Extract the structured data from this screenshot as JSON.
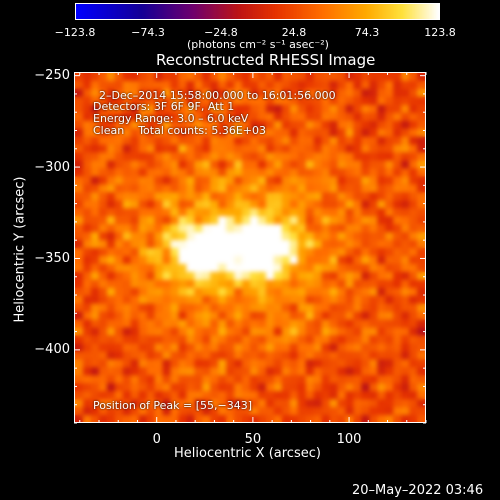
{
  "chart_data": {
    "type": "heatmap",
    "title": "Reconstructed RHESSI Image",
    "xlabel": "Heliocentric X (arcsec)",
    "ylabel": "Heliocentric Y (arcsec)",
    "xlim": [
      -43,
      140
    ],
    "ylim": [
      -440,
      -248
    ],
    "xticks": [
      0,
      50,
      100
    ],
    "xtick_labels": [
      "0",
      "50",
      "100"
    ],
    "yticks": [
      -250,
      -300,
      -350,
      -400
    ],
    "ytick_labels": [
      "−250",
      "−300",
      "−350",
      "−400"
    ],
    "colorbar": {
      "min": -123.8,
      "max": 123.8,
      "ticks": [
        -123.8,
        -74.3,
        -24.8,
        24.8,
        74.3,
        123.8
      ],
      "tick_labels": [
        "−123.8",
        "−74.3",
        "−24.8",
        "24.8",
        "74.3",
        "123.8"
      ],
      "unit_label": "(photons cm⁻² s⁻¹ asec⁻²)"
    },
    "annotations": [
      "2–Dec–2014 15:58:00.000 to 16:01:56.000",
      "Detectors: 3F 6F 9F, Att 1",
      "Energy Range: 3.0 – 6.0 keV",
      "Clean    Total counts: 5.36E+03"
    ],
    "peak_label": "Position of Peak = [55,−343]",
    "sources": [
      {
        "x": 55,
        "y": -343,
        "peak": 123.8
      },
      {
        "x": 25,
        "y": -346,
        "peak": 110
      }
    ]
  },
  "footer": {
    "timestamp": "20–May–2022 03:46"
  }
}
